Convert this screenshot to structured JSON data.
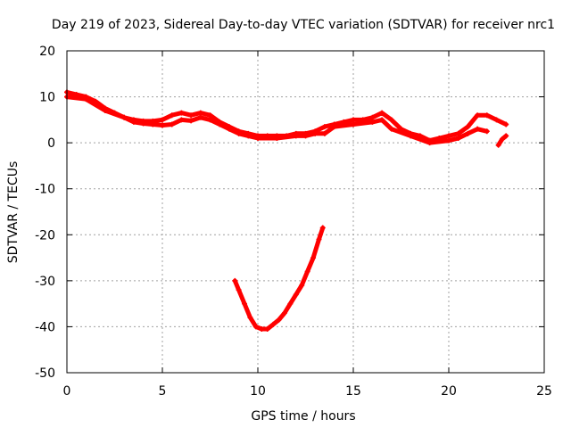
{
  "chart_data": {
    "type": "scatter",
    "title": "Day 219 of 2023, Sidereal Day-to-day VTEC variation (SDTVAR) for receiver nrc1",
    "xlabel": "GPS time / hours",
    "ylabel": "SDTVAR / TECUs",
    "xlim": [
      0,
      25
    ],
    "ylim": [
      -50,
      20
    ],
    "xticks": [
      "0",
      "5",
      "10",
      "15",
      "20",
      "25"
    ],
    "yticks": [
      "20",
      "10",
      "0",
      "-10",
      "-20",
      "-30",
      "-40",
      "-50"
    ],
    "grid": true,
    "series_color": "#ff0000",
    "series": [
      {
        "name": "main-track",
        "x": [
          0.0,
          0.5,
          1.0,
          1.5,
          2.0,
          2.5,
          3.0,
          3.5,
          4.0,
          4.5,
          5.0,
          5.5,
          6.0,
          6.5,
          7.0,
          7.5,
          8.0,
          8.5,
          9.0,
          9.5,
          10.0,
          10.5,
          11.0,
          11.5,
          12.0,
          12.5,
          13.0,
          13.5,
          14.0,
          14.5,
          15.0,
          15.5,
          16.0,
          16.5,
          17.0,
          17.5,
          18.0,
          18.5,
          19.0,
          19.5,
          20.0,
          20.5,
          21.0,
          21.5,
          22.0,
          22.5,
          23.0
        ],
        "y": [
          11,
          10.5,
          10,
          9,
          7.5,
          6.5,
          5.5,
          5,
          4.7,
          4.7,
          5,
          6,
          6.5,
          6,
          6.5,
          6,
          4.5,
          3.5,
          2.5,
          2,
          1.5,
          1.5,
          1.5,
          1.5,
          2,
          2,
          2.5,
          3.5,
          4,
          4.5,
          5,
          5,
          5.5,
          6.5,
          5,
          3,
          2,
          1.5,
          0.5,
          1,
          1.5,
          2,
          3.5,
          6,
          6,
          5,
          4
        ]
      },
      {
        "name": "secondary-track",
        "x": [
          0.0,
          1.0,
          2.0,
          3.0,
          3.5,
          4.0,
          4.5,
          5.0,
          5.5,
          6.0,
          6.5,
          7.0,
          7.5,
          8.0,
          8.5,
          9.0,
          9.5,
          10.0,
          11.0,
          12.0,
          12.5,
          13.0,
          13.5,
          14.0,
          15.0,
          16.0,
          16.5,
          17.0,
          18.0,
          19.0,
          20.0,
          20.5,
          21.0,
          21.5,
          22.0
        ],
        "y": [
          10,
          9.5,
          7,
          5.5,
          4.5,
          4.2,
          4,
          3.8,
          4,
          5,
          4.8,
          5.5,
          5,
          4,
          3,
          2,
          1.5,
          1,
          1,
          1.5,
          1.5,
          2,
          2,
          3.5,
          4,
          4.5,
          5,
          3,
          1.5,
          0,
          0.5,
          1,
          2,
          3,
          2.5
        ]
      },
      {
        "name": "late-segment",
        "x": [
          22.6,
          22.8,
          23.0
        ],
        "y": [
          -0.5,
          0.8,
          1.5
        ]
      },
      {
        "name": "dip-track",
        "x": [
          8.8,
          9.0,
          9.3,
          9.6,
          9.9,
          10.2,
          10.5,
          10.8,
          11.1,
          11.4,
          11.7,
          12.0,
          12.3,
          12.6,
          12.9,
          13.2,
          13.4
        ],
        "y": [
          -30,
          -32,
          -35,
          -38,
          -40,
          -40.5,
          -40.5,
          -39.5,
          -38.5,
          -37,
          -35,
          -33,
          -31,
          -28,
          -25,
          -21,
          -18.5
        ]
      }
    ]
  }
}
